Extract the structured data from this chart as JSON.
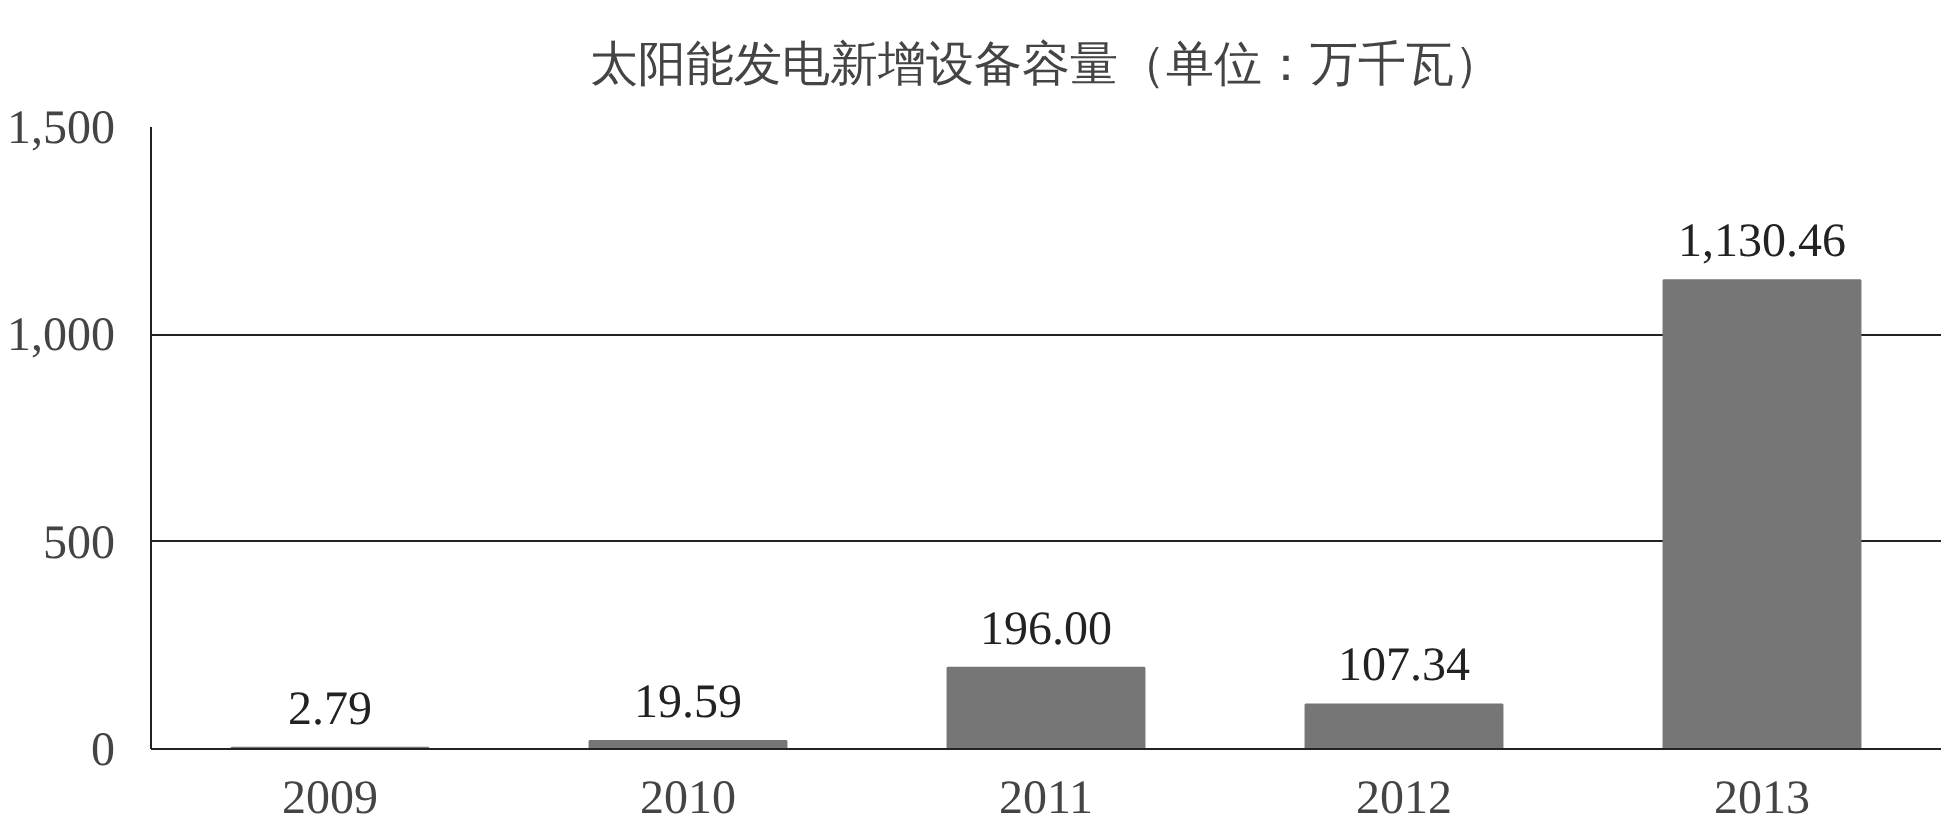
{
  "chart_data": {
    "type": "bar",
    "title": "太阳能发电新增设备容量（单位：万千瓦）",
    "categories": [
      "2009",
      "2010",
      "2011",
      "2012",
      "2013"
    ],
    "values": [
      2.79,
      19.59,
      196.0,
      107.34,
      1130.46
    ],
    "value_labels": [
      "2.79",
      "19.59",
      "196.00",
      "107.34",
      "1,130.46"
    ],
    "color": "#767676",
    "ylim": [
      0,
      1500
    ],
    "yticks": [
      0,
      500,
      {
        "value": 1000,
        "label": "1,000"
      },
      {
        "value": 1500,
        "label": "1,500"
      }
    ],
    "grid": "y"
  }
}
